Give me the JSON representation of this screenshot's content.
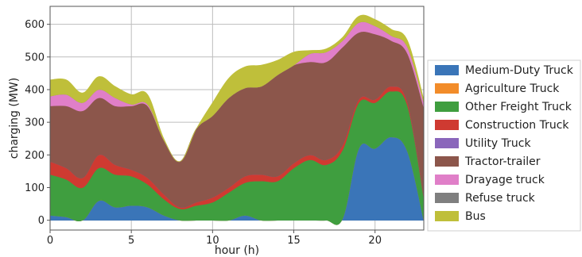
{
  "chart_data": {
    "type": "area",
    "stacked": true,
    "xlabel": "hour (h)",
    "ylabel": "charging (MW)",
    "xlim": [
      0,
      23
    ],
    "ylim": [
      -30,
      655
    ],
    "xticks": [
      0,
      5,
      10,
      15,
      20
    ],
    "yticks": [
      0,
      100,
      200,
      300,
      400,
      500,
      600
    ],
    "grid": true,
    "legend_position": "right",
    "x": [
      0,
      1,
      2,
      3,
      4,
      5,
      6,
      7,
      8,
      9,
      10,
      11,
      12,
      13,
      14,
      15,
      16,
      17,
      18,
      19,
      20,
      21,
      22,
      23
    ],
    "series": [
      {
        "name": "Medium-Duty Truck",
        "color": "#3a75b8",
        "values": [
          15,
          10,
          0,
          60,
          40,
          45,
          40,
          15,
          0,
          0,
          0,
          0,
          15,
          0,
          0,
          0,
          0,
          0,
          5,
          220,
          220,
          255,
          210,
          0
        ]
      },
      {
        "name": "Agriculture Truck",
        "color": "#f28c2a",
        "values": [
          0,
          0,
          0,
          0,
          0,
          0,
          0,
          0,
          0,
          0,
          0,
          0,
          0,
          0,
          0,
          0,
          0,
          0,
          0,
          0,
          0,
          0,
          0,
          0
        ]
      },
      {
        "name": "Other Freight Truck",
        "color": "#3f9e3f",
        "values": [
          125,
          115,
          100,
          100,
          100,
          90,
          70,
          50,
          35,
          45,
          55,
          85,
          100,
          120,
          120,
          160,
          185,
          170,
          210,
          140,
          140,
          140,
          140,
          70
        ]
      },
      {
        "name": "Construction Truck",
        "color": "#cf3a31",
        "values": [
          40,
          35,
          30,
          40,
          30,
          20,
          20,
          15,
          5,
          10,
          15,
          15,
          20,
          20,
          15,
          15,
          15,
          15,
          15,
          10,
          10,
          15,
          10,
          5
        ]
      },
      {
        "name": "Utility Truck",
        "color": "#8a66bb",
        "values": [
          0,
          0,
          0,
          0,
          0,
          0,
          0,
          0,
          0,
          0,
          0,
          0,
          0,
          0,
          0,
          0,
          0,
          0,
          0,
          0,
          0,
          0,
          0,
          0
        ]
      },
      {
        "name": "Tractor-trailer",
        "color": "#8c564b",
        "values": [
          170,
          190,
          205,
          175,
          180,
          195,
          220,
          165,
          140,
          225,
          250,
          275,
          270,
          270,
          310,
          300,
          285,
          300,
          300,
          205,
          200,
          140,
          150,
          270
        ]
      },
      {
        "name": "Drayage truck",
        "color": "#e07fc8",
        "values": [
          30,
          35,
          25,
          25,
          25,
          5,
          5,
          0,
          0,
          0,
          0,
          0,
          0,
          0,
          0,
          0,
          25,
          30,
          20,
          30,
          25,
          15,
          20,
          15
        ]
      },
      {
        "name": "Refuse truck",
        "color": "#7f7f7f",
        "values": [
          0,
          0,
          0,
          0,
          0,
          0,
          0,
          0,
          0,
          0,
          0,
          0,
          0,
          0,
          0,
          0,
          0,
          0,
          0,
          0,
          0,
          0,
          0,
          0
        ]
      },
      {
        "name": "Bus",
        "color": "#bfbf3a",
        "values": [
          50,
          45,
          30,
          40,
          35,
          30,
          30,
          5,
          0,
          0,
          40,
          60,
          65,
          65,
          45,
          40,
          10,
          10,
          10,
          20,
          20,
          20,
          20,
          10
        ]
      }
    ]
  }
}
